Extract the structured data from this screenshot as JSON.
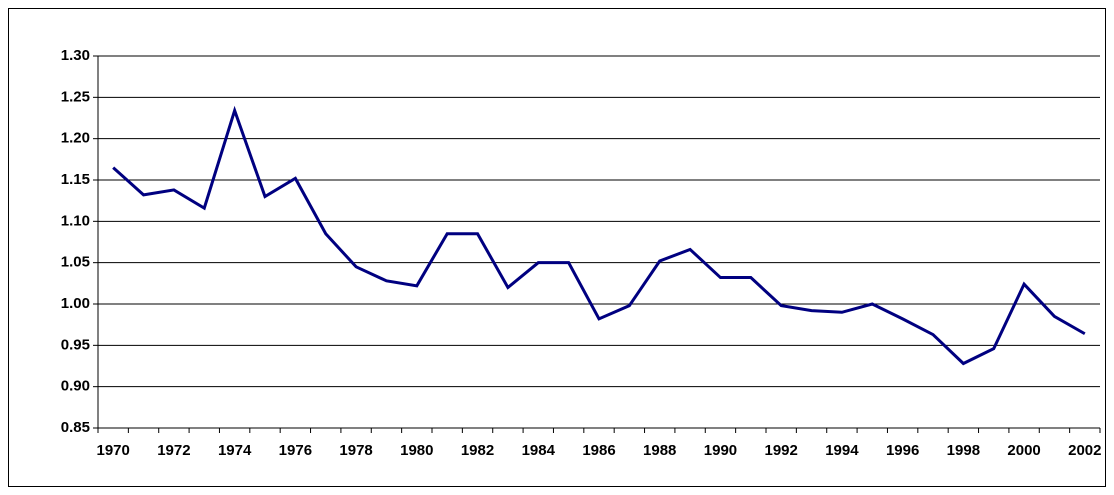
{
  "chart_data": {
    "type": "line",
    "categories": [
      "1970",
      null,
      "1972",
      null,
      "1974",
      null,
      "1976",
      null,
      "1978",
      null,
      "1980",
      null,
      "1982",
      null,
      "1984",
      null,
      "1986",
      null,
      "1988",
      null,
      "1990",
      null,
      "1992",
      null,
      "1994",
      null,
      "1996",
      null,
      "1998",
      null,
      "2000",
      null,
      "2002"
    ],
    "values": [
      1.165,
      1.132,
      1.138,
      1.116,
      1.234,
      1.13,
      1.152,
      1.085,
      1.045,
      1.028,
      1.022,
      1.085,
      1.085,
      1.02,
      1.05,
      1.05,
      0.982,
      0.998,
      1.052,
      1.066,
      1.032,
      1.032,
      0.998,
      0.992,
      0.99,
      1.0,
      0.982,
      0.963,
      0.928,
      0.946,
      1.024,
      0.985,
      0.964
    ],
    "color": "#000080",
    "ylim": [
      0.85,
      1.3
    ],
    "yticks": [
      {
        "value": 0.85,
        "label": "0.85"
      },
      {
        "value": 0.9,
        "label": "0.90"
      },
      {
        "value": 0.95,
        "label": "0.95"
      },
      {
        "value": 1.0,
        "label": "1.00"
      },
      {
        "value": 1.05,
        "label": "1.05"
      },
      {
        "value": 1.1,
        "label": "1.10"
      },
      {
        "value": 1.15,
        "label": "1.15"
      },
      {
        "value": 1.2,
        "label": "1.20"
      },
      {
        "value": 1.25,
        "label": "1.25"
      },
      {
        "value": 1.3,
        "label": "1.30"
      }
    ],
    "grid": true
  }
}
